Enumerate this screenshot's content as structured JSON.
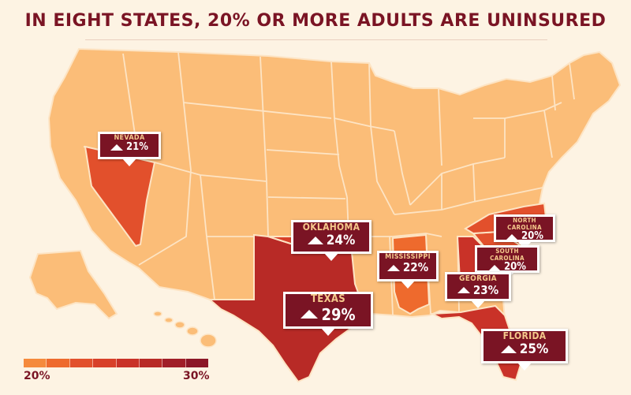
{
  "title": "IN EIGHT STATES, 20% OR MORE ADULTS ARE UNINSURED",
  "colors": {
    "background": "#fdf3e3",
    "base_state": "#fbbd78",
    "state_border": "#fde4c4",
    "callout_bg": "#7a1424",
    "callout_state_text": "#f5c98c",
    "title_text": "#7a1424",
    "scale": [
      "#f58a3c",
      "#ee6a2d",
      "#e2502c",
      "#d84029",
      "#c93228",
      "#b82a26",
      "#a11f28",
      "#8c1727"
    ]
  },
  "legend": {
    "min_label": "20%",
    "max_label": "30%",
    "min": 20,
    "max": 30
  },
  "states": [
    {
      "name": "NEVADA",
      "value_label": "21%",
      "value": 21
    },
    {
      "name": "OKLAHOMA",
      "value_label": "24%",
      "value": 24
    },
    {
      "name": "TEXAS",
      "value_label": "29%",
      "value": 29
    },
    {
      "name": "MISSISSIPPI",
      "value_label": "22%",
      "value": 22
    },
    {
      "name": "NORTH CAROLINA",
      "value_label": "20%",
      "value": 20
    },
    {
      "name": "SOUTH CAROLINA",
      "value_label": "20%",
      "value": 20
    },
    {
      "name": "GEORGIA",
      "value_label": "23%",
      "value": 23
    },
    {
      "name": "FLORIDA",
      "value_label": "25%",
      "value": 25
    }
  ]
}
